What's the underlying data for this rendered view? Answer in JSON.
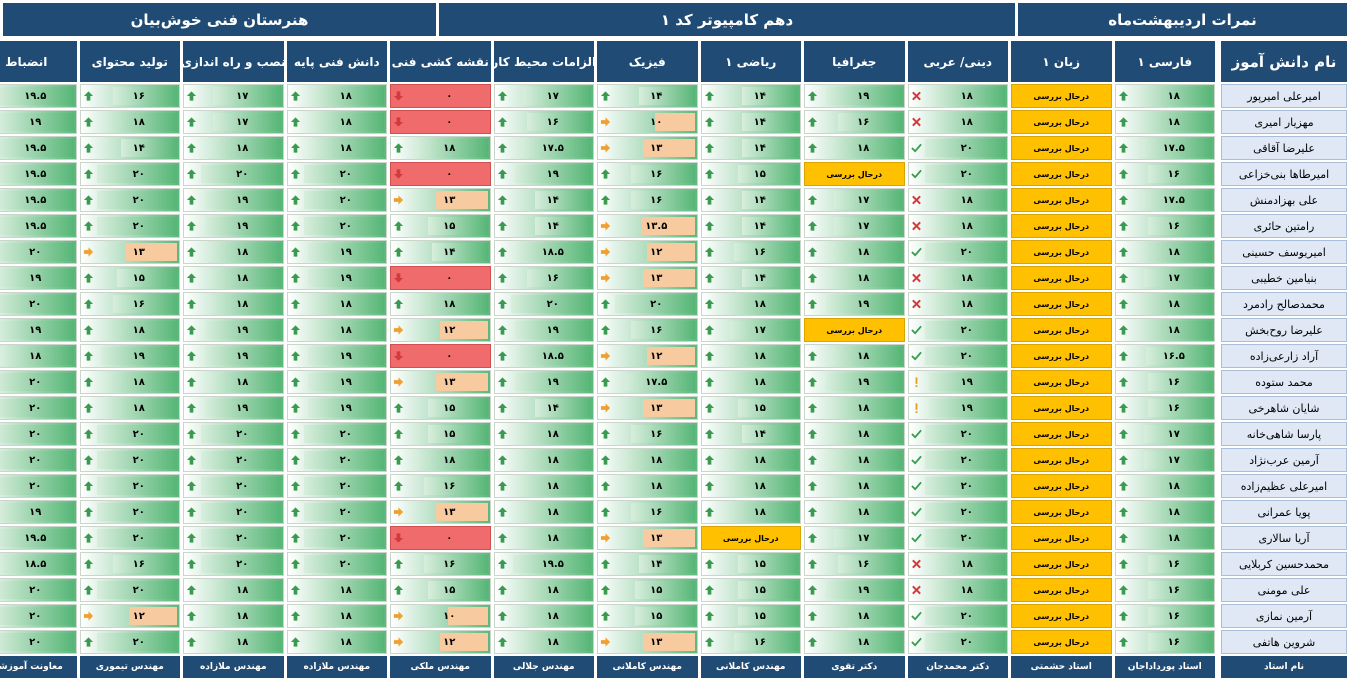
{
  "titles": {
    "right": "نمرات اردیبهشت‌ماه",
    "middle": "دهم کامپیوتر کد ۱",
    "left": "هنرستان فنی خوش‌بیان"
  },
  "name_header": "نام دانش آموز",
  "teacher_label": "نام استاد",
  "pending_text": "درحال بررسی",
  "colors": {
    "header": "#1f4b74",
    "name_bg": "#dfe8f4",
    "pending": "#ffc000",
    "zero": "#f06b6b",
    "good": "#56b676"
  },
  "columns": [
    {
      "label": "فارسی ۱",
      "teacher": "استاد پورداداجان",
      "max": 20
    },
    {
      "label": "زبان ۱",
      "teacher": "استاد حشمتی",
      "max": 20
    },
    {
      "label": "دینی/ عربی",
      "teacher": "دکتر محمدجان",
      "max": 20
    },
    {
      "label": "جغرافیا",
      "teacher": "دکتر تقوی",
      "max": 20
    },
    {
      "label": "ریاضی ۱",
      "teacher": "مهندس کاملانی",
      "max": 20
    },
    {
      "label": "فیزیک",
      "teacher": "مهندس کاملانی",
      "max": 20
    },
    {
      "label": "الزامات محیط کار",
      "teacher": "مهندس جلالی",
      "max": 20
    },
    {
      "label": "نقشه کشی فنی",
      "teacher": "مهندس ملکی",
      "max": 20
    },
    {
      "label": "دانش فنی پایه",
      "teacher": "مهندس ملازاده",
      "max": 20
    },
    {
      "label": "نصب و راه اندازی",
      "teacher": "مهندس ملازاده",
      "max": 20
    },
    {
      "label": "تولید محتوای",
      "teacher": "مهندس تیموری",
      "max": 20
    },
    {
      "label": "انضباط",
      "teacher": "معاونت آموزشی",
      "max": 20
    }
  ],
  "students": [
    {
      "name": "امیرعلی امیرپور",
      "scores": [
        "۱۸",
        "P",
        "۱۸",
        "۱۹",
        "۱۴",
        "۱۴",
        "۱۷",
        "۰",
        "۱۸",
        "۱۷",
        "۱۶",
        "۱۹.۵"
      ]
    },
    {
      "name": "مهزیار امیری",
      "scores": [
        "۱۸",
        "P",
        "۱۸",
        "۱۶",
        "۱۴",
        "۱۰",
        "۱۶",
        "۰",
        "۱۸",
        "۱۷",
        "۱۸",
        "۱۹"
      ]
    },
    {
      "name": "علیرضا آقاقی",
      "scores": [
        "۱۷.۵",
        "P",
        "۲۰",
        "۱۸",
        "۱۴",
        "۱۳",
        "۱۷.۵",
        "۱۸",
        "۱۸",
        "۱۸",
        "۱۴",
        "۱۹.۵"
      ]
    },
    {
      "name": "امیرطاها بنی‌خزاعی",
      "scores": [
        "۱۶",
        "P",
        "۲۰",
        "P",
        "۱۵",
        "۱۶",
        "۱۹",
        "۰",
        "۲۰",
        "۲۰",
        "۲۰",
        "۱۹.۵"
      ]
    },
    {
      "name": "علی بهزادمنش",
      "scores": [
        "۱۷.۵",
        "P",
        "۱۸",
        "۱۷",
        "۱۴",
        "۱۶",
        "۱۴",
        "۱۳",
        "۲۰",
        "۱۹",
        "۲۰",
        "۱۹.۵"
      ]
    },
    {
      "name": "رامتین حائری",
      "scores": [
        "۱۶",
        "P",
        "۱۸",
        "۱۷",
        "۱۴",
        "۱۳.۵",
        "۱۴",
        "۱۵",
        "۲۰",
        "۱۹",
        "۲۰",
        "۱۹.۵"
      ]
    },
    {
      "name": "امیریوسف حسینی",
      "scores": [
        "۱۸",
        "P",
        "۲۰",
        "۱۸",
        "۱۶",
        "۱۲",
        "۱۸.۵",
        "۱۴",
        "۱۹",
        "۱۸",
        "۱۳",
        "۲۰"
      ]
    },
    {
      "name": "بنیامین خطیبی",
      "scores": [
        "۱۷",
        "P",
        "۱۸",
        "۱۸",
        "۱۴",
        "۱۳",
        "۱۶",
        "۰",
        "۱۹",
        "۱۸",
        "۱۵",
        "۱۹"
      ]
    },
    {
      "name": "محمدصالح رادمرد",
      "scores": [
        "۱۸",
        "P",
        "۱۸",
        "۱۹",
        "۱۸",
        "۲۰",
        "۲۰",
        "۱۸",
        "۱۸",
        "۱۸",
        "۱۶",
        "۲۰"
      ]
    },
    {
      "name": "علیرضا روح‌بخش",
      "scores": [
        "۱۸",
        "P",
        "۲۰",
        "P",
        "۱۷",
        "۱۶",
        "۱۹",
        "۱۲",
        "۱۸",
        "۱۹",
        "۱۸",
        "۱۹"
      ]
    },
    {
      "name": "آراد زارعی‌زاده",
      "scores": [
        "۱۶.۵",
        "P",
        "۲۰",
        "۱۸",
        "۱۸",
        "۱۲",
        "۱۸.۵",
        "۰",
        "۱۹",
        "۱۹",
        "۱۹",
        "۱۸"
      ]
    },
    {
      "name": "محمد ستوده",
      "scores": [
        "۱۶",
        "P",
        "۱۹",
        "۱۹",
        "۱۸",
        "۱۷.۵",
        "۱۹",
        "۱۳",
        "۱۹",
        "۱۸",
        "۱۸",
        "۲۰"
      ]
    },
    {
      "name": "شایان شاهرخی",
      "scores": [
        "۱۶",
        "P",
        "۱۹",
        "۱۸",
        "۱۵",
        "۱۳",
        "۱۴",
        "۱۵",
        "۱۹",
        "۱۹",
        "۱۸",
        "۲۰"
      ]
    },
    {
      "name": "پارسا شاهی‌خانه",
      "scores": [
        "۱۷",
        "P",
        "۲۰",
        "۱۸",
        "۱۴",
        "۱۶",
        "۱۸",
        "۱۵",
        "۲۰",
        "۲۰",
        "۲۰",
        "۲۰"
      ]
    },
    {
      "name": "آرمین عرب‌نژاد",
      "scores": [
        "۱۷",
        "P",
        "۲۰",
        "۱۸",
        "۱۸",
        "۱۸",
        "۱۸",
        "۱۸",
        "۲۰",
        "۲۰",
        "۲۰",
        "۲۰"
      ]
    },
    {
      "name": "امیرعلی عظیم‌زاده",
      "scores": [
        "۱۸",
        "P",
        "۲۰",
        "۱۸",
        "۱۸",
        "۱۸",
        "۱۸",
        "۱۶",
        "۲۰",
        "۲۰",
        "۲۰",
        "۲۰"
      ]
    },
    {
      "name": "پویا عمرانی",
      "scores": [
        "۱۸",
        "P",
        "۲۰",
        "۱۸",
        "۱۸",
        "۱۶",
        "۱۸",
        "۱۳",
        "۲۰",
        "۲۰",
        "۲۰",
        "۱۹"
      ]
    },
    {
      "name": "آریا سالاری",
      "scores": [
        "۱۸",
        "P",
        "۲۰",
        "۱۷",
        "P",
        "۱۳",
        "۱۸",
        "۰",
        "۲۰",
        "۲۰",
        "۲۰",
        "۱۹.۵"
      ]
    },
    {
      "name": "محمدحسین کربلایی",
      "scores": [
        "۱۶",
        "P",
        "۱۸",
        "۱۶",
        "۱۵",
        "۱۴",
        "۱۹.۵",
        "۱۶",
        "۲۰",
        "۲۰",
        "۱۶",
        "۱۸.۵"
      ]
    },
    {
      "name": "علی مومنی",
      "scores": [
        "۱۶",
        "P",
        "۱۸",
        "۱۹",
        "۱۵",
        "۱۵",
        "۱۸",
        "۱۵",
        "۱۸",
        "۱۸",
        "۲۰",
        "۲۰"
      ]
    },
    {
      "name": "آرمین نمازی",
      "scores": [
        "۱۶",
        "P",
        "۲۰",
        "۱۸",
        "۱۵",
        "۱۵",
        "۱۸",
        "۱۰",
        "۱۸",
        "۱۸",
        "۱۲",
        "۲۰"
      ]
    },
    {
      "name": "شروین هاتفی",
      "scores": [
        "۱۶",
        "P",
        "۲۰",
        "۱۸",
        "۱۶",
        "۱۳",
        "۱۸",
        "۱۲",
        "۱۸",
        "۱۸",
        "۲۰",
        "۲۰"
      ]
    }
  ]
}
